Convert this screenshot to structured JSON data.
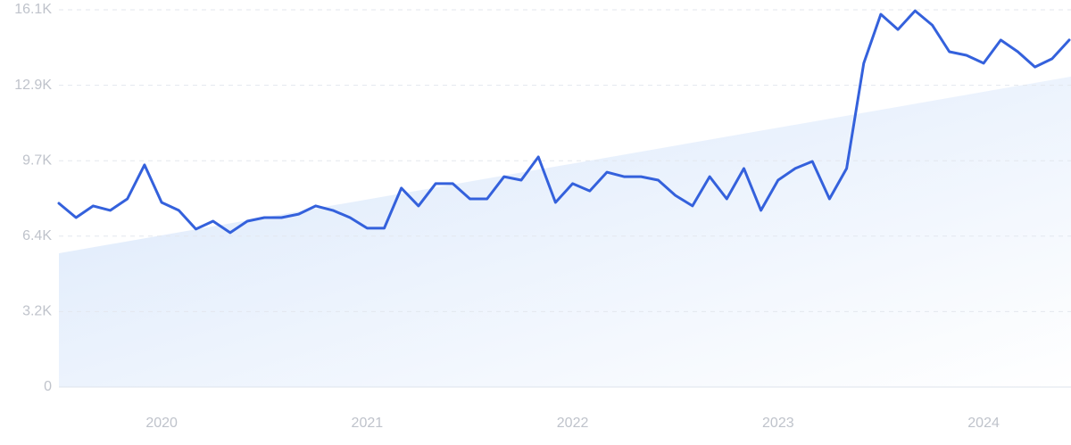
{
  "chart_data": {
    "type": "line",
    "categories": [
      null,
      null,
      null,
      null,
      null,
      null,
      "2020",
      null,
      null,
      null,
      null,
      null,
      null,
      null,
      null,
      null,
      null,
      null,
      "2021",
      null,
      null,
      null,
      null,
      null,
      null,
      null,
      null,
      null,
      null,
      null,
      "2022",
      null,
      null,
      null,
      null,
      null,
      null,
      null,
      null,
      null,
      null,
      null,
      "2023",
      null,
      null,
      null,
      null,
      null,
      null,
      null,
      null,
      null,
      null,
      null,
      "2024",
      null,
      null,
      null,
      null,
      null
    ],
    "values": [
      7840,
      7230,
      7730,
      7540,
      8030,
      9480,
      7880,
      7540,
      6740,
      7080,
      6590,
      7080,
      7230,
      7230,
      7380,
      7730,
      7540,
      7230,
      6780,
      6780,
      8490,
      7730,
      8680,
      8680,
      8030,
      8030,
      8980,
      8830,
      9820,
      7880,
      8680,
      8370,
      9170,
      8980,
      8980,
      8830,
      8180,
      7730,
      8980,
      8030,
      9330,
      7540,
      8830,
      9330,
      9630,
      8030,
      9330,
      13820,
      15910,
      15260,
      16060,
      15450,
      14310,
      14160,
      13820,
      14810,
      14310,
      13660,
      14010,
      14810
    ],
    "color": "#3461dc",
    "trend_values": [
      5710,
      13250
    ],
    "ylim": [
      0,
      16100
    ],
    "yticks": [
      0,
      {
        "value": 3220,
        "label": "3.2K"
      },
      {
        "value": 6440,
        "label": "6.4K"
      },
      {
        "value": 9660,
        "label": "9.7K"
      },
      {
        "value": 12880,
        "label": "12.9K"
      },
      {
        "value": 16100,
        "label": "16.1K"
      }
    ],
    "grid": true
  }
}
